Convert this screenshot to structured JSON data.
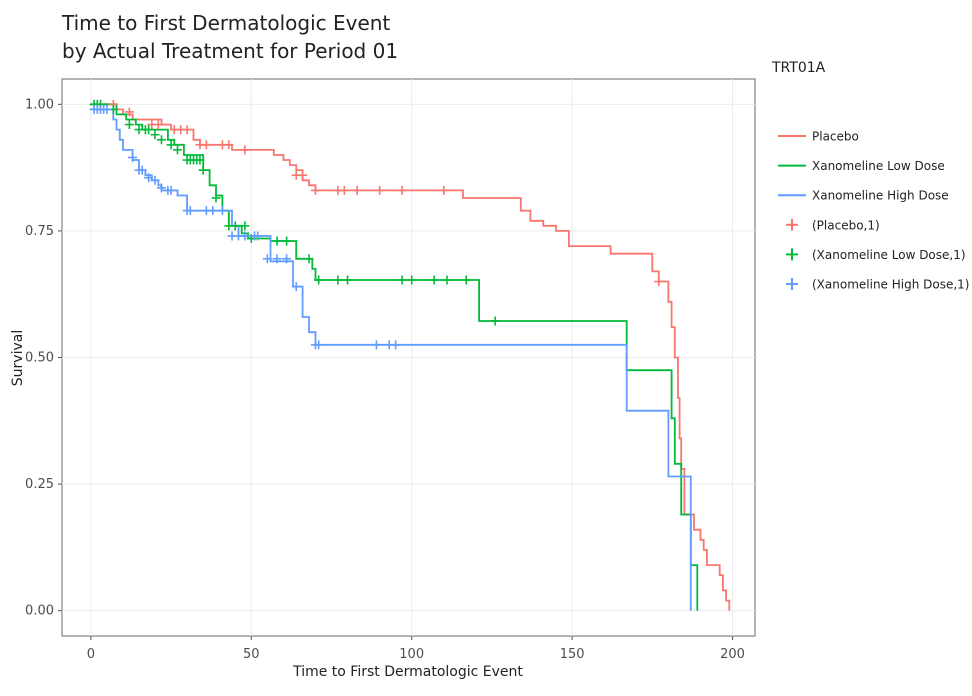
{
  "chart_data": {
    "type": "line",
    "title_lines": [
      "Time to First Dermatologic Event",
      "by Actual Treatment for Period 01"
    ],
    "xlabel": "Time to First Dermatologic Event",
    "ylabel": "Survival",
    "xlim": [
      -9,
      207
    ],
    "ylim": [
      -0.05,
      1.05
    ],
    "x_ticks": [
      0,
      50,
      100,
      150,
      200
    ],
    "x_tick_labels": [
      "0",
      "50",
      "100",
      "150",
      "200"
    ],
    "y_ticks": [
      0,
      0.25,
      0.5,
      0.75,
      1.0
    ],
    "y_tick_labels": [
      "0.00",
      "0.25",
      "0.50",
      "0.75",
      "1.00"
    ],
    "grid": true,
    "legend_title": "TRT01A",
    "legend_position": "right",
    "series": [
      {
        "name": "Placebo",
        "color": "#F8766D",
        "steps": [
          [
            0,
            1.0
          ],
          [
            8,
            0.99
          ],
          [
            10,
            0.98
          ],
          [
            13,
            0.97
          ],
          [
            22,
            0.96
          ],
          [
            25,
            0.95
          ],
          [
            32,
            0.93
          ],
          [
            34,
            0.92
          ],
          [
            44,
            0.91
          ],
          [
            57,
            0.9
          ],
          [
            60,
            0.89
          ],
          [
            62,
            0.88
          ],
          [
            64,
            0.87
          ],
          [
            66,
            0.85
          ],
          [
            68,
            0.84
          ],
          [
            70,
            0.83
          ],
          [
            116,
            0.815
          ],
          [
            134,
            0.79
          ],
          [
            137,
            0.77
          ],
          [
            141,
            0.76
          ],
          [
            145,
            0.75
          ],
          [
            149,
            0.72
          ],
          [
            162,
            0.705
          ],
          [
            175,
            0.67
          ],
          [
            177,
            0.65
          ],
          [
            180,
            0.61
          ],
          [
            181,
            0.56
          ],
          [
            182,
            0.5
          ],
          [
            183,
            0.42
          ],
          [
            183.5,
            0.34
          ],
          [
            184,
            0.28
          ],
          [
            185,
            0.19
          ],
          [
            188,
            0.16
          ],
          [
            190,
            0.14
          ],
          [
            191,
            0.12
          ],
          [
            192,
            0.09
          ],
          [
            196,
            0.07
          ],
          [
            197,
            0.04
          ],
          [
            198,
            0.02
          ],
          [
            199,
            0.0
          ]
        ],
        "censor": [
          [
            7,
            1.0
          ],
          [
            12,
            0.985
          ],
          [
            19,
            0.96
          ],
          [
            21,
            0.96
          ],
          [
            26,
            0.95
          ],
          [
            28,
            0.95
          ],
          [
            30,
            0.95
          ],
          [
            34,
            0.92
          ],
          [
            36,
            0.92
          ],
          [
            41,
            0.92
          ],
          [
            43,
            0.92
          ],
          [
            48,
            0.91
          ],
          [
            64,
            0.86
          ],
          [
            66,
            0.86
          ],
          [
            70,
            0.83
          ],
          [
            77,
            0.83
          ],
          [
            79,
            0.83
          ],
          [
            83,
            0.83
          ],
          [
            90,
            0.83
          ],
          [
            97,
            0.83
          ],
          [
            110,
            0.83
          ],
          [
            177,
            0.65
          ]
        ]
      },
      {
        "name": "Xanomeline Low Dose",
        "color": "#00BA38",
        "steps": [
          [
            0,
            1.0
          ],
          [
            8,
            0.98
          ],
          [
            11,
            0.97
          ],
          [
            14,
            0.96
          ],
          [
            16,
            0.95
          ],
          [
            24,
            0.93
          ],
          [
            26,
            0.92
          ],
          [
            29,
            0.9
          ],
          [
            35,
            0.87
          ],
          [
            37,
            0.84
          ],
          [
            39,
            0.82
          ],
          [
            41,
            0.79
          ],
          [
            43,
            0.76
          ],
          [
            47,
            0.745
          ],
          [
            49,
            0.735
          ],
          [
            56,
            0.73
          ],
          [
            64,
            0.695
          ],
          [
            69,
            0.675
          ],
          [
            70,
            0.653
          ],
          [
            121,
            0.572
          ],
          [
            167,
            0.475
          ],
          [
            181,
            0.38
          ],
          [
            182,
            0.29
          ],
          [
            184,
            0.19
          ],
          [
            187,
            0.09
          ],
          [
            189,
            0.0
          ]
        ],
        "censor": [
          [
            1,
            1.0
          ],
          [
            2,
            1.0
          ],
          [
            3,
            1.0
          ],
          [
            7,
            0.99
          ],
          [
            12,
            0.96
          ],
          [
            15,
            0.95
          ],
          [
            17,
            0.95
          ],
          [
            18,
            0.95
          ],
          [
            20,
            0.94
          ],
          [
            22,
            0.93
          ],
          [
            25,
            0.92
          ],
          [
            27,
            0.91
          ],
          [
            30,
            0.89
          ],
          [
            31,
            0.89
          ],
          [
            32,
            0.89
          ],
          [
            33,
            0.89
          ],
          [
            34,
            0.89
          ],
          [
            35,
            0.87
          ],
          [
            39,
            0.815
          ],
          [
            43,
            0.76
          ],
          [
            45,
            0.76
          ],
          [
            48,
            0.76
          ],
          [
            50,
            0.735
          ],
          [
            58,
            0.73
          ],
          [
            61,
            0.73
          ],
          [
            68,
            0.695
          ],
          [
            71,
            0.653
          ],
          [
            77,
            0.653
          ],
          [
            80,
            0.653
          ],
          [
            97,
            0.653
          ],
          [
            100,
            0.653
          ],
          [
            107,
            0.653
          ],
          [
            111,
            0.653
          ],
          [
            117,
            0.653
          ],
          [
            126,
            0.572
          ]
        ]
      },
      {
        "name": "Xanomeline High Dose",
        "color": "#619CFF",
        "steps": [
          [
            0,
            0.99
          ],
          [
            7,
            0.97
          ],
          [
            8,
            0.95
          ],
          [
            9,
            0.93
          ],
          [
            10,
            0.91
          ],
          [
            13,
            0.89
          ],
          [
            15,
            0.87
          ],
          [
            17,
            0.86
          ],
          [
            19,
            0.85
          ],
          [
            21,
            0.84
          ],
          [
            22,
            0.83
          ],
          [
            27,
            0.82
          ],
          [
            30,
            0.79
          ],
          [
            44,
            0.76
          ],
          [
            46,
            0.74
          ],
          [
            56,
            0.69
          ],
          [
            63,
            0.64
          ],
          [
            66,
            0.58
          ],
          [
            68,
            0.55
          ],
          [
            70,
            0.525
          ],
          [
            167,
            0.395
          ],
          [
            180,
            0.265
          ],
          [
            187,
            0.0
          ]
        ],
        "censor": [
          [
            1,
            0.99
          ],
          [
            2,
            0.99
          ],
          [
            3,
            0.99
          ],
          [
            4,
            0.99
          ],
          [
            5,
            0.99
          ],
          [
            13,
            0.895
          ],
          [
            15,
            0.87
          ],
          [
            16,
            0.87
          ],
          [
            18,
            0.855
          ],
          [
            20,
            0.85
          ],
          [
            22,
            0.835
          ],
          [
            24,
            0.83
          ],
          [
            25,
            0.83
          ],
          [
            30,
            0.79
          ],
          [
            31,
            0.79
          ],
          [
            36,
            0.79
          ],
          [
            38,
            0.79
          ],
          [
            41,
            0.79
          ],
          [
            44,
            0.74
          ],
          [
            46,
            0.74
          ],
          [
            48,
            0.74
          ],
          [
            51,
            0.74
          ],
          [
            52,
            0.74
          ],
          [
            55,
            0.695
          ],
          [
            58,
            0.695
          ],
          [
            61,
            0.695
          ],
          [
            64,
            0.64
          ],
          [
            70,
            0.525
          ],
          [
            71,
            0.525
          ],
          [
            89,
            0.525
          ],
          [
            93,
            0.525
          ],
          [
            95,
            0.525
          ]
        ]
      }
    ],
    "legend_entries": [
      {
        "label": "Placebo",
        "color": "#F8766D",
        "symbol": "line"
      },
      {
        "label": "Xanomeline Low Dose",
        "color": "#00BA38",
        "symbol": "line"
      },
      {
        "label": "Xanomeline High Dose",
        "color": "#619CFF",
        "symbol": "line"
      },
      {
        "label": "(Placebo,1)",
        "color": "#F8766D",
        "symbol": "plus"
      },
      {
        "label": "(Xanomeline Low Dose,1)",
        "color": "#00BA38",
        "symbol": "plus"
      },
      {
        "label": "(Xanomeline High Dose,1)",
        "color": "#619CFF",
        "symbol": "plus"
      }
    ]
  }
}
